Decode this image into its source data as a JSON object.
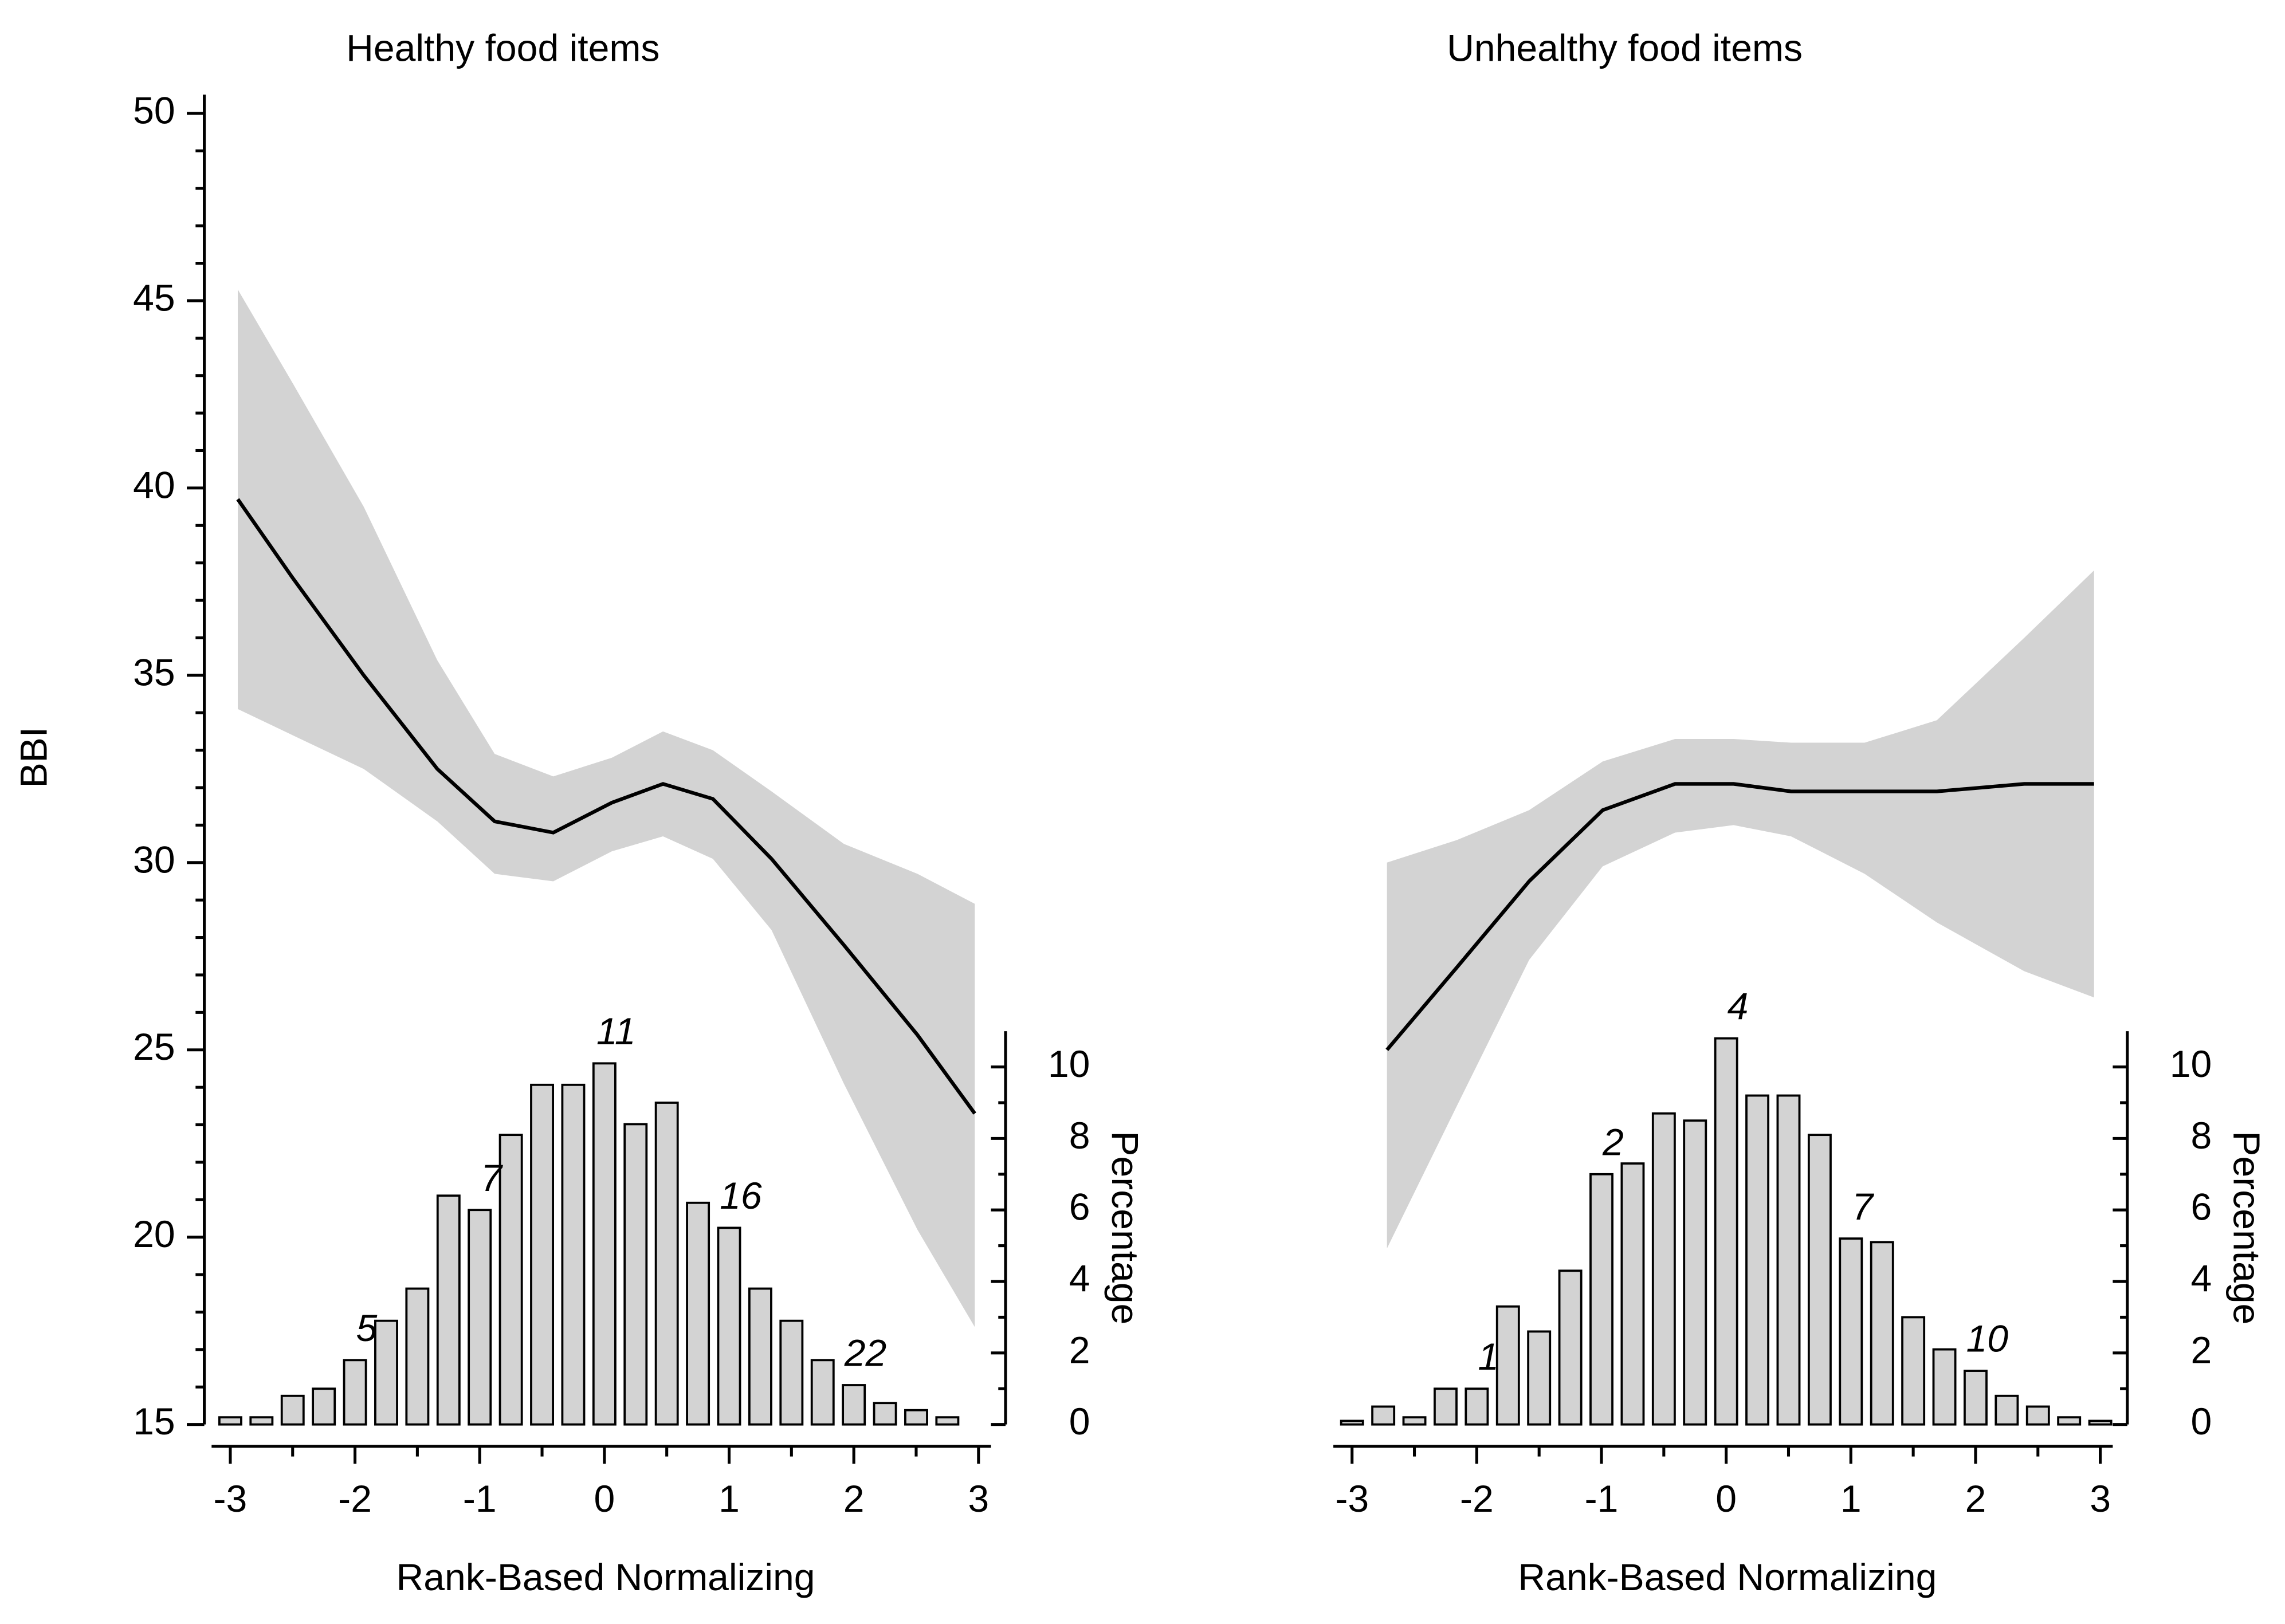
{
  "chart_data": [
    {
      "type": "line",
      "title": "Healthy food items",
      "xlabel": "Rank-Based Normalizing",
      "ylabel": "BBI",
      "y2label": "Percentage",
      "x": [
        -2.94,
        -2.5,
        -1.93,
        -1.34,
        -0.88,
        -0.41,
        0.06,
        0.47,
        0.87,
        1.34,
        1.92,
        2.51,
        2.97
      ],
      "series": [
        {
          "color": "#000000",
          "band_color": "#d3d3d3",
          "values": [
            39.7,
            37.6,
            35.0,
            32.5,
            31.1,
            30.8,
            31.6,
            32.1,
            31.7,
            30.1,
            27.8,
            25.4,
            23.3
          ],
          "ci_upper": [
            45.3,
            42.8,
            39.5,
            35.4,
            32.9,
            32.3,
            32.8,
            33.5,
            33.0,
            31.9,
            30.5,
            29.7,
            28.9
          ],
          "ci_lower": [
            34.1,
            33.4,
            32.5,
            31.1,
            29.7,
            29.5,
            30.3,
            30.7,
            30.1,
            28.2,
            24.1,
            20.2,
            17.6
          ]
        }
      ],
      "histogram": {
        "type": "histogram",
        "axis": "y2",
        "color": "#d3d3d3",
        "bins": [
          -3.125,
          -2.875,
          -2.625,
          -2.375,
          -2.125,
          -1.875,
          -1.625,
          -1.375,
          -1.125,
          -0.875,
          -0.625,
          -0.375,
          -0.125,
          0.125,
          0.375,
          0.625,
          0.875,
          1.125,
          1.375,
          1.625,
          1.875,
          2.125,
          2.375,
          2.625,
          2.875
        ],
        "values": [
          0.2,
          0.2,
          0.8,
          1.0,
          1.8,
          2.9,
          3.8,
          6.4,
          6.0,
          8.1,
          9.5,
          9.5,
          10.1,
          8.4,
          9.0,
          6.2,
          5.5,
          3.8,
          2.9,
          1.8,
          1.1,
          0.6,
          0.4,
          0.2
        ]
      },
      "annotations": [
        {
          "x": -2,
          "text": "5"
        },
        {
          "x": -1,
          "text": "7"
        },
        {
          "x": 0,
          "text": "11"
        },
        {
          "x": 1,
          "text": "16"
        },
        {
          "x": 2,
          "text": "22"
        }
      ],
      "xlim": [
        -3.15,
        3.1
      ],
      "xticks": [
        -3,
        -2,
        -1,
        0,
        1,
        2,
        3
      ],
      "ylim": [
        15,
        50.5
      ],
      "yticks": [
        15,
        20,
        25,
        30,
        35,
        40,
        45,
        50
      ],
      "y2lim": [
        0,
        11
      ],
      "y2ticks": [
        0,
        2,
        4,
        6,
        8,
        10
      ]
    },
    {
      "type": "line",
      "title": "Unhealthy food items",
      "xlabel": "Rank-Based Normalizing",
      "y2label": "Percentage",
      "x": [
        -2.72,
        -2.16,
        -1.58,
        -0.99,
        -0.41,
        0.06,
        0.52,
        1.11,
        1.69,
        2.39,
        2.95
      ],
      "series": [
        {
          "color": "#000000",
          "band_color": "#d3d3d3",
          "values": [
            25.0,
            27.2,
            29.5,
            31.4,
            32.1,
            32.1,
            31.9,
            31.9,
            31.9,
            32.1,
            32.1
          ],
          "ci_upper": [
            30.0,
            30.6,
            31.4,
            32.7,
            33.3,
            33.3,
            33.2,
            33.2,
            33.8,
            36.0,
            37.8
          ],
          "ci_lower": [
            19.7,
            23.5,
            27.4,
            29.9,
            30.8,
            31.0,
            30.7,
            29.7,
            28.4,
            27.1,
            26.4
          ]
        }
      ],
      "histogram": {
        "type": "histogram",
        "axis": "y2",
        "color": "#d3d3d3",
        "bins": [
          -3.125,
          -2.875,
          -2.625,
          -2.375,
          -2.125,
          -1.875,
          -1.625,
          -1.375,
          -1.125,
          -0.875,
          -0.625,
          -0.375,
          -0.125,
          0.125,
          0.375,
          0.625,
          0.875,
          1.125,
          1.375,
          1.625,
          1.875,
          2.125,
          2.375,
          2.625,
          2.875,
          3.125
        ],
        "values": [
          0.1,
          0.5,
          0.2,
          1.0,
          1.0,
          3.3,
          2.6,
          4.3,
          7.0,
          7.3,
          8.7,
          8.5,
          10.8,
          9.2,
          9.2,
          8.1,
          5.2,
          5.1,
          3.0,
          2.1,
          1.5,
          0.8,
          0.5,
          0.2,
          0.1
        ]
      },
      "annotations": [
        {
          "x": -2,
          "text": "1"
        },
        {
          "x": -1,
          "text": "2"
        },
        {
          "x": 0,
          "text": "4"
        },
        {
          "x": 1,
          "text": "7"
        },
        {
          "x": 2,
          "text": "10"
        }
      ],
      "xlim": [
        -3.15,
        3.1
      ],
      "xticks": [
        -3,
        -2,
        -1,
        0,
        1,
        2,
        3
      ],
      "ylim": [
        15,
        50.5
      ],
      "y2lim": [
        0,
        11
      ],
      "y2ticks": [
        0,
        2,
        4,
        6,
        8,
        10
      ]
    }
  ]
}
